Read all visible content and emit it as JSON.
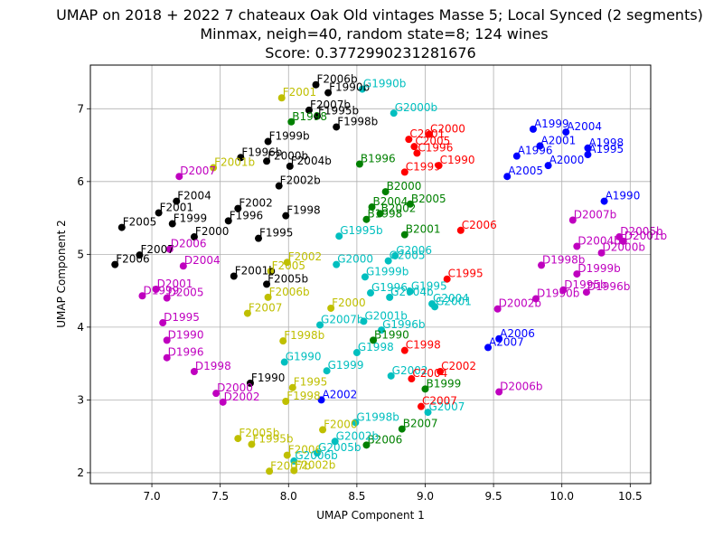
{
  "chart_data": {
    "type": "scatter",
    "title_lines": [
      "UMAP on 2018 + 2022 7 chateaux Oak Old vintages Masse 5; Local Synced (2 segments)",
      "Minmax, neigh=40, random state=8; 124 wines",
      "Score: 0.3772990231281676"
    ],
    "xlabel": "UMAP Component 1",
    "ylabel": "UMAP Component 2",
    "xlim": [
      6.55,
      10.65
    ],
    "ylim": [
      1.85,
      7.6
    ],
    "xticks": [
      "7.0",
      "7.5",
      "8.0",
      "8.5",
      "9.0",
      "9.5",
      "10.0",
      "10.5"
    ],
    "yticks": [
      "2",
      "3",
      "4",
      "5",
      "6",
      "7"
    ],
    "grid": true,
    "series": [
      {
        "color": "#000000",
        "points": [
          {
            "label": "F2006b",
            "x": 8.2,
            "y": 7.33
          },
          {
            "label": "F1990b",
            "x": 8.29,
            "y": 7.22
          },
          {
            "label": "F2007b",
            "x": 8.15,
            "y": 6.98
          },
          {
            "label": "F1995b",
            "x": 8.21,
            "y": 6.9
          },
          {
            "label": "F1998b",
            "x": 8.35,
            "y": 6.75
          },
          {
            "label": "F1999b",
            "x": 7.85,
            "y": 6.55
          },
          {
            "label": "F1996b",
            "x": 7.65,
            "y": 6.33
          },
          {
            "label": "F2000b",
            "x": 7.84,
            "y": 6.28
          },
          {
            "label": "F2004b",
            "x": 8.01,
            "y": 6.21
          },
          {
            "label": "F2002b",
            "x": 7.93,
            "y": 5.94
          },
          {
            "label": "F2004",
            "x": 7.18,
            "y": 5.73
          },
          {
            "label": "F2001",
            "x": 7.05,
            "y": 5.57
          },
          {
            "label": "F2002",
            "x": 7.63,
            "y": 5.63
          },
          {
            "label": "F1999",
            "x": 7.15,
            "y": 5.42
          },
          {
            "label": "F1996",
            "x": 7.56,
            "y": 5.46
          },
          {
            "label": "F1998",
            "x": 7.98,
            "y": 5.53
          },
          {
            "label": "F2005",
            "x": 6.78,
            "y": 5.37
          },
          {
            "label": "F2000",
            "x": 7.31,
            "y": 5.24
          },
          {
            "label": "F1995",
            "x": 7.78,
            "y": 5.22
          },
          {
            "label": "F2007",
            "x": 6.91,
            "y": 4.99
          },
          {
            "label": "F2006",
            "x": 6.73,
            "y": 4.86
          },
          {
            "label": "F2001b",
            "x": 7.6,
            "y": 4.7
          },
          {
            "label": "F2005b",
            "x": 7.84,
            "y": 4.59
          },
          {
            "label": "F1990",
            "x": 7.72,
            "y": 3.23
          }
        ]
      },
      {
        "color": "#bfbf00",
        "points": [
          {
            "label": "F2001",
            "x": 7.95,
            "y": 7.15
          },
          {
            "label": "F2001b",
            "x": 7.45,
            "y": 6.19
          },
          {
            "label": "F2002",
            "x": 7.99,
            "y": 4.89
          },
          {
            "label": "F2005",
            "x": 7.87,
            "y": 4.77
          },
          {
            "label": "F2006b",
            "x": 7.85,
            "y": 4.41
          },
          {
            "label": "F2000",
            "x": 8.31,
            "y": 4.26
          },
          {
            "label": "F2007",
            "x": 7.7,
            "y": 4.19
          },
          {
            "label": "F1998b",
            "x": 7.96,
            "y": 3.81
          },
          {
            "label": "F1995",
            "x": 8.03,
            "y": 3.17
          },
          {
            "label": "F1998",
            "x": 7.98,
            "y": 2.98
          },
          {
            "label": "F2000",
            "x": 8.25,
            "y": 2.59
          },
          {
            "label": "F2005b",
            "x": 7.63,
            "y": 2.47
          },
          {
            "label": "F1995b",
            "x": 7.73,
            "y": 2.39
          },
          {
            "label": "F2006",
            "x": 7.99,
            "y": 2.24
          },
          {
            "label": "F2002b",
            "x": 8.04,
            "y": 2.03
          },
          {
            "label": "F2007b",
            "x": 7.86,
            "y": 2.02
          }
        ]
      },
      {
        "color": "#008000",
        "points": [
          {
            "label": "B1998",
            "x": 8.02,
            "y": 6.82
          },
          {
            "label": "B1996",
            "x": 8.52,
            "y": 6.24
          },
          {
            "label": "B2000",
            "x": 8.71,
            "y": 5.86
          },
          {
            "label": "B2005",
            "x": 8.89,
            "y": 5.69
          },
          {
            "label": "B2004",
            "x": 8.61,
            "y": 5.65
          },
          {
            "label": "B2002",
            "x": 8.67,
            "y": 5.56
          },
          {
            "label": "B1998",
            "x": 8.57,
            "y": 5.48
          },
          {
            "label": "B2001",
            "x": 8.85,
            "y": 5.27
          },
          {
            "label": "B1990",
            "x": 8.62,
            "y": 3.82
          },
          {
            "label": "B1999",
            "x": 9.0,
            "y": 3.15
          },
          {
            "label": "B2007",
            "x": 8.83,
            "y": 2.6
          },
          {
            "label": "B2006",
            "x": 8.57,
            "y": 2.38
          }
        ]
      },
      {
        "color": "#00bfbf",
        "points": [
          {
            "label": "G1990b",
            "x": 8.54,
            "y": 7.27
          },
          {
            "label": "G2000b",
            "x": 8.77,
            "y": 6.94
          },
          {
            "label": "G1995b",
            "x": 8.37,
            "y": 5.25
          },
          {
            "label": "G2006",
            "x": 8.78,
            "y": 4.98
          },
          {
            "label": "G2005",
            "x": 8.73,
            "y": 4.91
          },
          {
            "label": "G2000",
            "x": 8.35,
            "y": 4.86
          },
          {
            "label": "G1999b",
            "x": 8.56,
            "y": 4.69
          },
          {
            "label": "G1995",
            "x": 8.89,
            "y": 4.49
          },
          {
            "label": "G1996",
            "x": 8.6,
            "y": 4.47
          },
          {
            "label": "G2004b",
            "x": 8.74,
            "y": 4.41
          },
          {
            "label": "G2004",
            "x": 9.05,
            "y": 4.32
          },
          {
            "label": "G2001",
            "x": 9.07,
            "y": 4.28
          },
          {
            "label": "G2001b",
            "x": 8.55,
            "y": 4.08
          },
          {
            "label": "G2007b",
            "x": 8.23,
            "y": 4.03
          },
          {
            "label": "G1996b",
            "x": 8.68,
            "y": 3.96
          },
          {
            "label": "G1998",
            "x": 8.5,
            "y": 3.65
          },
          {
            "label": "G1990",
            "x": 7.97,
            "y": 3.52
          },
          {
            "label": "G1999",
            "x": 8.28,
            "y": 3.4
          },
          {
            "label": "G2002",
            "x": 8.75,
            "y": 3.33
          },
          {
            "label": "G2007",
            "x": 9.02,
            "y": 2.83
          },
          {
            "label": "G1998b",
            "x": 8.49,
            "y": 2.69
          },
          {
            "label": "G2002b",
            "x": 8.34,
            "y": 2.43
          },
          {
            "label": "G2005b",
            "x": 8.21,
            "y": 2.27
          },
          {
            "label": "G2006b",
            "x": 8.04,
            "y": 2.16
          }
        ]
      },
      {
        "color": "#ff0000",
        "points": [
          {
            "label": "C2000",
            "x": 9.03,
            "y": 6.65
          },
          {
            "label": "C2001",
            "x": 8.88,
            "y": 6.58
          },
          {
            "label": "C2005",
            "x": 8.92,
            "y": 6.48
          },
          {
            "label": "C1996",
            "x": 8.94,
            "y": 6.39
          },
          {
            "label": "C1990",
            "x": 9.1,
            "y": 6.22
          },
          {
            "label": "C1999",
            "x": 8.85,
            "y": 6.13
          },
          {
            "label": "C2006",
            "x": 9.26,
            "y": 5.33
          },
          {
            "label": "C1995",
            "x": 9.16,
            "y": 4.66
          },
          {
            "label": "C1998",
            "x": 8.85,
            "y": 3.68
          },
          {
            "label": "C2002",
            "x": 9.11,
            "y": 3.39
          },
          {
            "label": "C2004",
            "x": 8.9,
            "y": 3.29
          },
          {
            "label": "C2007",
            "x": 8.97,
            "y": 2.91
          }
        ]
      },
      {
        "color": "#0000ff",
        "points": [
          {
            "label": "A1999",
            "x": 9.79,
            "y": 6.72
          },
          {
            "label": "A2004",
            "x": 10.03,
            "y": 6.68
          },
          {
            "label": "A2001",
            "x": 9.84,
            "y": 6.49
          },
          {
            "label": "A1998",
            "x": 10.19,
            "y": 6.46
          },
          {
            "label": "A1995",
            "x": 10.19,
            "y": 6.37
          },
          {
            "label": "A1996",
            "x": 9.67,
            "y": 6.35
          },
          {
            "label": "A2000",
            "x": 9.9,
            "y": 6.22
          },
          {
            "label": "A2005",
            "x": 9.6,
            "y": 6.07
          },
          {
            "label": "A1990",
            "x": 10.31,
            "y": 5.73
          },
          {
            "label": "A2006",
            "x": 9.54,
            "y": 3.84
          },
          {
            "label": "A2007",
            "x": 9.46,
            "y": 3.72
          },
          {
            "label": "A2002",
            "x": 8.24,
            "y": 3.0
          }
        ]
      },
      {
        "color": "#bf00bf",
        "points": [
          {
            "label": "D2007",
            "x": 7.2,
            "y": 6.07
          },
          {
            "label": "D2006",
            "x": 7.13,
            "y": 5.07
          },
          {
            "label": "D2004",
            "x": 7.23,
            "y": 4.84
          },
          {
            "label": "D2001",
            "x": 7.03,
            "y": 4.52
          },
          {
            "label": "D1999",
            "x": 6.93,
            "y": 4.43
          },
          {
            "label": "D2005",
            "x": 7.11,
            "y": 4.4
          },
          {
            "label": "D1995",
            "x": 7.08,
            "y": 4.06
          },
          {
            "label": "D1990",
            "x": 7.11,
            "y": 3.82
          },
          {
            "label": "D1996",
            "x": 7.11,
            "y": 3.58
          },
          {
            "label": "D1998",
            "x": 7.31,
            "y": 3.39
          },
          {
            "label": "D2000",
            "x": 7.47,
            "y": 3.09
          },
          {
            "label": "D2002",
            "x": 7.52,
            "y": 2.97
          },
          {
            "label": "D2007b",
            "x": 10.08,
            "y": 5.47
          },
          {
            "label": "D2005b",
            "x": 10.42,
            "y": 5.24
          },
          {
            "label": "D2001b",
            "x": 10.45,
            "y": 5.18
          },
          {
            "label": "D2004b",
            "x": 10.11,
            "y": 5.11
          },
          {
            "label": "D2000b",
            "x": 10.29,
            "y": 5.02
          },
          {
            "label": "D1998b",
            "x": 9.85,
            "y": 4.85
          },
          {
            "label": "D1999b",
            "x": 10.11,
            "y": 4.73
          },
          {
            "label": "D1995b",
            "x": 10.01,
            "y": 4.51
          },
          {
            "label": "D1996b",
            "x": 10.18,
            "y": 4.48
          },
          {
            "label": "D1990b",
            "x": 9.81,
            "y": 4.39
          },
          {
            "label": "D2002b",
            "x": 9.53,
            "y": 4.25
          },
          {
            "label": "D2006b",
            "x": 9.54,
            "y": 3.11
          }
        ]
      }
    ]
  }
}
